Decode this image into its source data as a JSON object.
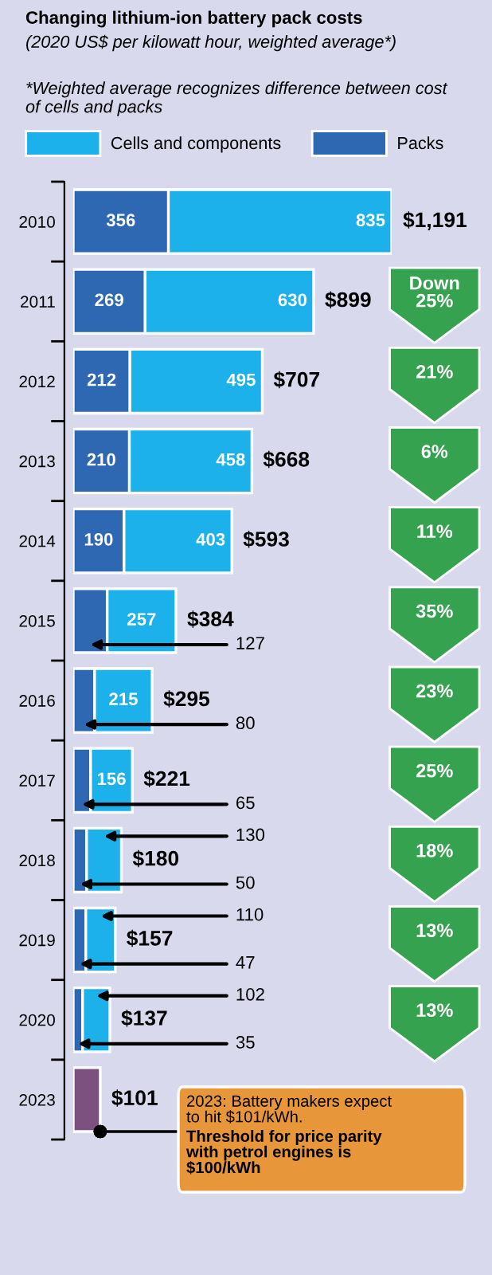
{
  "chart_data": {
    "type": "bar",
    "orientation": "horizontal",
    "stacked": true,
    "title": "Changing lithium-ion battery pack costs",
    "subtitle": "(2020 US$ per kilowatt hour, weighted average*)",
    "categories": [
      "2010",
      "2011",
      "2012",
      "2013",
      "2014",
      "2015",
      "2016",
      "2017",
      "2018",
      "2019",
      "2020",
      "2023"
    ],
    "series": [
      {
        "name": "Packs",
        "color": "#2f68b2",
        "values": [
          356,
          269,
          212,
          210,
          190,
          127,
          80,
          65,
          50,
          47,
          35,
          null
        ],
        "value_labels": [
          "356",
          "269",
          "212",
          "210",
          "190",
          "127",
          "80",
          "65",
          "50",
          "47",
          "35",
          null
        ]
      },
      {
        "name": "Cells and components",
        "color": "#1cb1ea",
        "values": [
          835,
          630,
          495,
          458,
          403,
          257,
          215,
          156,
          130,
          110,
          102,
          null
        ],
        "value_labels": [
          "835",
          "630",
          "495",
          "458",
          "403",
          "257",
          "215",
          "156",
          "130",
          "110",
          "102",
          null
        ]
      },
      {
        "color": "#7c5180",
        "values": [
          null,
          null,
          null,
          null,
          null,
          null,
          null,
          null,
          null,
          null,
          null,
          101
        ],
        "value_labels": [
          null,
          null,
          null,
          null,
          null,
          null,
          null,
          null,
          null,
          null,
          null,
          null
        ]
      }
    ],
    "totals": [
      "$1,191",
      "$899",
      "$707",
      "$668",
      "$593",
      "$384",
      "$295",
      "$221",
      "$180",
      "$157",
      "$137",
      "$101"
    ],
    "legend": "top",
    "tick_labels": "y",
    "annotations": [
      "*Weighted average recognizes difference between cost of cells and packs",
      "Down\n25%",
      "21%",
      "6%",
      "11%",
      "35%",
      "23%",
      "25%",
      "18%",
      "13%",
      "13%",
      {
        "text": "2023: Battery makers expect\nto hit $101/kWh.",
        "x": 101,
        "y": "2023"
      },
      {
        "text": "Threshold for price parity\nwith petrol engines is\n$100/kWh",
        "x": 101,
        "y": "2023"
      }
    ]
  }
}
